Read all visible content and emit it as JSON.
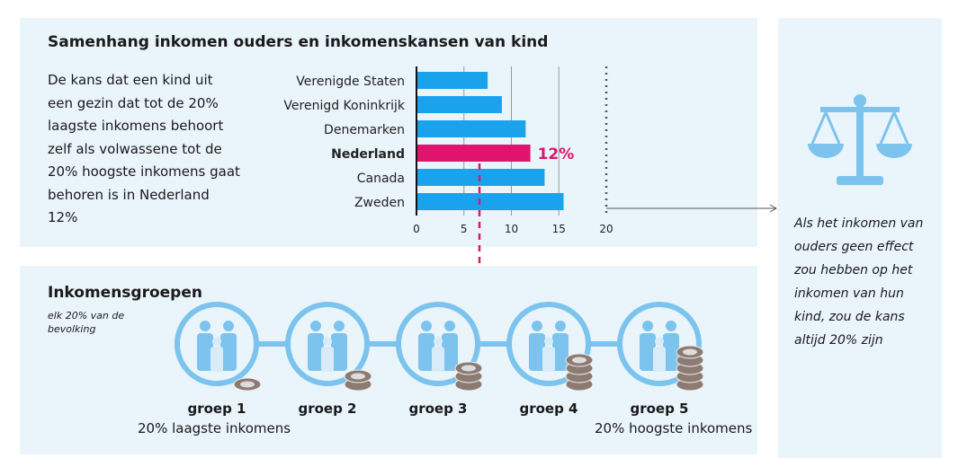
{
  "title": "Samenhang inkomen ouders en inkomenskansen van kind",
  "description": "De kans dat een kind uit een gezin dat tot de 20% laagste inkomens behoort zelf als volwassene tot de 20% hoogste inkomens gaat behoren is in Nederland 12%",
  "side_note": "Als het inkomen van ouders geen effect zou hebben op het inkomen van hun kind, zou de kans altijd 20% zijn",
  "groups_title": "Inkomensgroepen",
  "groups_subtitle": "elk 20% van de bevolking",
  "groups": [
    {
      "label": "groep 1",
      "coins": 1
    },
    {
      "label": "groep 2",
      "coins": 2
    },
    {
      "label": "groep 3",
      "coins": 3
    },
    {
      "label": "groep 4",
      "coins": 4
    },
    {
      "label": "groep 5",
      "coins": 5
    }
  ],
  "lowest_caption": "20% laagste inkomens",
  "highest_caption": "20% hoogste inkomens",
  "colors": {
    "bar": "#1aa3ec",
    "highlight": "#e0136d",
    "panel": "#eaf4fb",
    "icon": "#7cc4ee",
    "coin": "#8c7b72"
  },
  "chart_data": {
    "type": "bar",
    "orientation": "horizontal",
    "categories": [
      "Verenigde Staten",
      "Verenigd Koninkrijk",
      "Denemarken",
      "Nederland",
      "Canada",
      "Zweden"
    ],
    "values": [
      7.5,
      9,
      11.5,
      12,
      13.5,
      15.5
    ],
    "highlight": "Nederland",
    "highlight_label": "12%",
    "xticks": [
      0,
      5,
      10,
      15,
      20
    ],
    "xlim": [
      0,
      20
    ],
    "reference_line": 20,
    "grid": true
  }
}
